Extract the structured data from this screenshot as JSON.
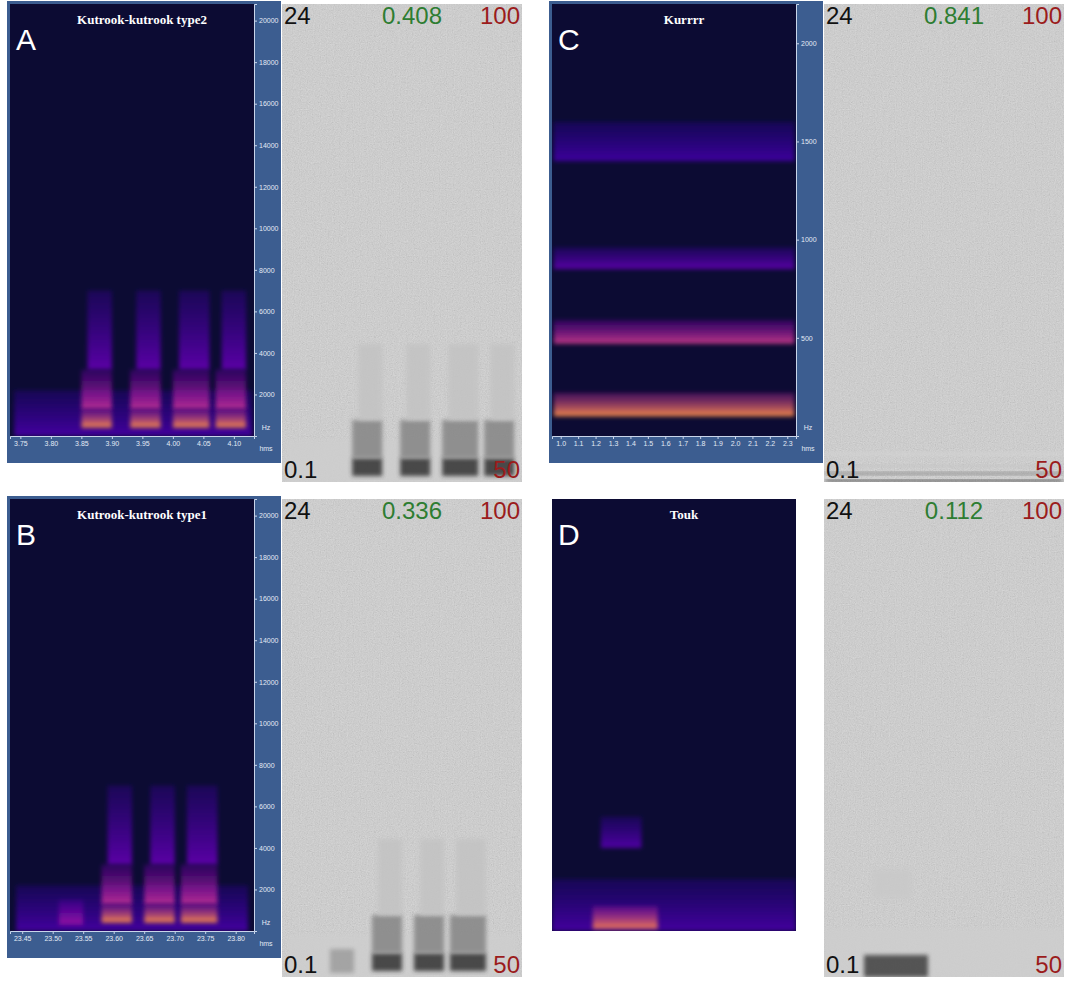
{
  "chart_data": [
    {
      "type": "spectrogram",
      "letter": "A",
      "title": "Kutrook-kutrook type2",
      "xlim": [
        3.733,
        4.133
      ],
      "xticks": [
        3.75,
        {
          "value": 3.8,
          "label": "3.80"
        },
        3.85,
        {
          "value": 3.9,
          "label": "3.90"
        },
        3.95,
        {
          "value": 4.0,
          "label": "4.00"
        },
        4.05,
        {
          "value": 4.1,
          "label": "4.10"
        }
      ],
      "ylim": [
        0,
        20800
      ],
      "yticks": [
        2000,
        4000,
        6000,
        8000,
        10000,
        12000,
        14000,
        16000,
        18000,
        20000
      ],
      "x_label": "hms",
      "y_label": "Hz",
      "bands": [
        {
          "start": 3.74,
          "end": 4.13,
          "low": 0,
          "high": 2200,
          "level": 0.12
        },
        {
          "start": 3.85,
          "end": 3.9,
          "low": 400,
          "high": 1300,
          "level": 0.8
        },
        {
          "start": 3.85,
          "end": 3.9,
          "low": 1300,
          "high": 3200,
          "level": 0.45
        },
        {
          "start": 3.86,
          "end": 3.9,
          "low": 3200,
          "high": 7000,
          "level": 0.18
        },
        {
          "start": 3.93,
          "end": 3.98,
          "low": 400,
          "high": 1300,
          "level": 0.8
        },
        {
          "start": 3.93,
          "end": 3.98,
          "low": 1300,
          "high": 3200,
          "level": 0.45
        },
        {
          "start": 3.94,
          "end": 3.98,
          "low": 3200,
          "high": 7000,
          "level": 0.18
        },
        {
          "start": 4.0,
          "end": 4.06,
          "low": 400,
          "high": 1300,
          "level": 0.8
        },
        {
          "start": 4.0,
          "end": 4.06,
          "low": 1300,
          "high": 3200,
          "level": 0.45
        },
        {
          "start": 4.01,
          "end": 4.06,
          "low": 3200,
          "high": 7000,
          "level": 0.18
        },
        {
          "start": 4.07,
          "end": 4.12,
          "low": 400,
          "high": 1300,
          "level": 0.8
        },
        {
          "start": 4.07,
          "end": 4.12,
          "low": 1300,
          "high": 3200,
          "level": 0.45
        },
        {
          "start": 4.08,
          "end": 4.12,
          "low": 3200,
          "high": 7000,
          "level": 0.18
        }
      ],
      "right": {
        "ylim": [
          100,
          24000
        ],
        "yticks": [
          {
            "value": 24000,
            "label": "24"
          },
          {
            "value": 100,
            "label": "0.1"
          }
        ],
        "y2lim": [
          50,
          100
        ],
        "y2ticks": [
          100,
          50
        ],
        "duration": 0.408
      }
    },
    {
      "type": "spectrogram",
      "letter": "B",
      "title": "Kutrook-kutrook type1",
      "xlim": [
        23.43,
        23.83
      ],
      "xticks": [
        23.45,
        {
          "value": 23.5,
          "label": "23.50"
        },
        23.55,
        {
          "value": 23.6,
          "label": "23.60"
        },
        23.65,
        {
          "value": 23.7,
          "label": "23.70"
        },
        23.75,
        {
          "value": 23.8,
          "label": "23.80"
        }
      ],
      "ylim": [
        0,
        20800
      ],
      "yticks": [
        2000,
        4000,
        6000,
        8000,
        10000,
        12000,
        14000,
        16000,
        18000,
        20000
      ],
      "x_label": "hms",
      "y_label": "Hz",
      "bands": [
        {
          "start": 23.44,
          "end": 23.82,
          "low": 0,
          "high": 2200,
          "level": 0.12
        },
        {
          "start": 23.51,
          "end": 23.55,
          "low": 300,
          "high": 1500,
          "level": 0.35
        },
        {
          "start": 23.58,
          "end": 23.63,
          "low": 400,
          "high": 1300,
          "level": 0.8
        },
        {
          "start": 23.58,
          "end": 23.63,
          "low": 1300,
          "high": 3200,
          "level": 0.45
        },
        {
          "start": 23.59,
          "end": 23.63,
          "low": 3200,
          "high": 7000,
          "level": 0.18
        },
        {
          "start": 23.65,
          "end": 23.7,
          "low": 400,
          "high": 1300,
          "level": 0.8
        },
        {
          "start": 23.65,
          "end": 23.7,
          "low": 1300,
          "high": 3200,
          "level": 0.45
        },
        {
          "start": 23.66,
          "end": 23.7,
          "low": 3200,
          "high": 7000,
          "level": 0.18
        },
        {
          "start": 23.71,
          "end": 23.77,
          "low": 400,
          "high": 1300,
          "level": 0.8
        },
        {
          "start": 23.71,
          "end": 23.77,
          "low": 1300,
          "high": 3200,
          "level": 0.45
        },
        {
          "start": 23.72,
          "end": 23.77,
          "low": 3200,
          "high": 7000,
          "level": 0.18
        }
      ],
      "right": {
        "ylim": [
          100,
          24000
        ],
        "yticks": [
          {
            "value": 24000,
            "label": "24"
          },
          {
            "value": 100,
            "label": "0.1"
          }
        ],
        "y2lim": [
          50,
          100
        ],
        "y2ticks": [
          100,
          50
        ],
        "duration": 0.336
      }
    },
    {
      "type": "spectrogram",
      "letter": "C",
      "title": "Kurrrr",
      "xlim": [
        0.95,
        2.35
      ],
      "xticks": [
        {
          "value": 1.0,
          "label": "1.0"
        },
        1.1,
        1.2,
        1.3,
        1.4,
        1.5,
        1.6,
        1.7,
        1.8,
        1.9,
        {
          "value": 2.0,
          "label": "2.0"
        },
        2.1,
        2.2,
        2.3
      ],
      "ylim": [
        0,
        2200
      ],
      "yticks": [
        500,
        1000,
        1500,
        2000
      ],
      "x_label": "hms",
      "y_label": "Hz",
      "bands": [
        {
          "start": 0.96,
          "end": 2.34,
          "low": 100,
          "high": 220,
          "level": 0.8
        },
        {
          "start": 0.96,
          "end": 2.34,
          "low": 470,
          "high": 590,
          "level": 0.5
        },
        {
          "start": 0.96,
          "end": 2.34,
          "low": 850,
          "high": 960,
          "level": 0.18
        },
        {
          "start": 0.96,
          "end": 2.34,
          "low": 1400,
          "high": 1600,
          "level": 0.1
        }
      ],
      "right": {
        "ylim": [
          100,
          24000
        ],
        "yticks": [
          {
            "value": 24000,
            "label": "24"
          },
          {
            "value": 100,
            "label": "0.1"
          }
        ],
        "y2lim": [
          50,
          100
        ],
        "y2ticks": [
          100,
          50
        ],
        "duration": 0.841
      }
    },
    {
      "type": "spectrogram",
      "letter": "D",
      "title": "Touk",
      "xlim": [
        0,
        0.3
      ],
      "ylim": [
        0,
        20800
      ],
      "tick_labels": false,
      "bands": [
        {
          "start": 0.0,
          "end": 0.3,
          "low": 0,
          "high": 2500,
          "level": 0.12
        },
        {
          "start": 0.05,
          "end": 0.13,
          "low": 100,
          "high": 1200,
          "level": 0.75
        },
        {
          "start": 0.06,
          "end": 0.11,
          "low": 4000,
          "high": 5500,
          "level": 0.15
        }
      ],
      "right": {
        "ylim": [
          100,
          24000
        ],
        "yticks": [
          {
            "value": 24000,
            "label": "24"
          },
          {
            "value": 100,
            "label": "0.1"
          }
        ],
        "y2lim": [
          50,
          100
        ],
        "y2ticks": [
          100,
          50
        ],
        "duration": 0.112
      }
    }
  ]
}
